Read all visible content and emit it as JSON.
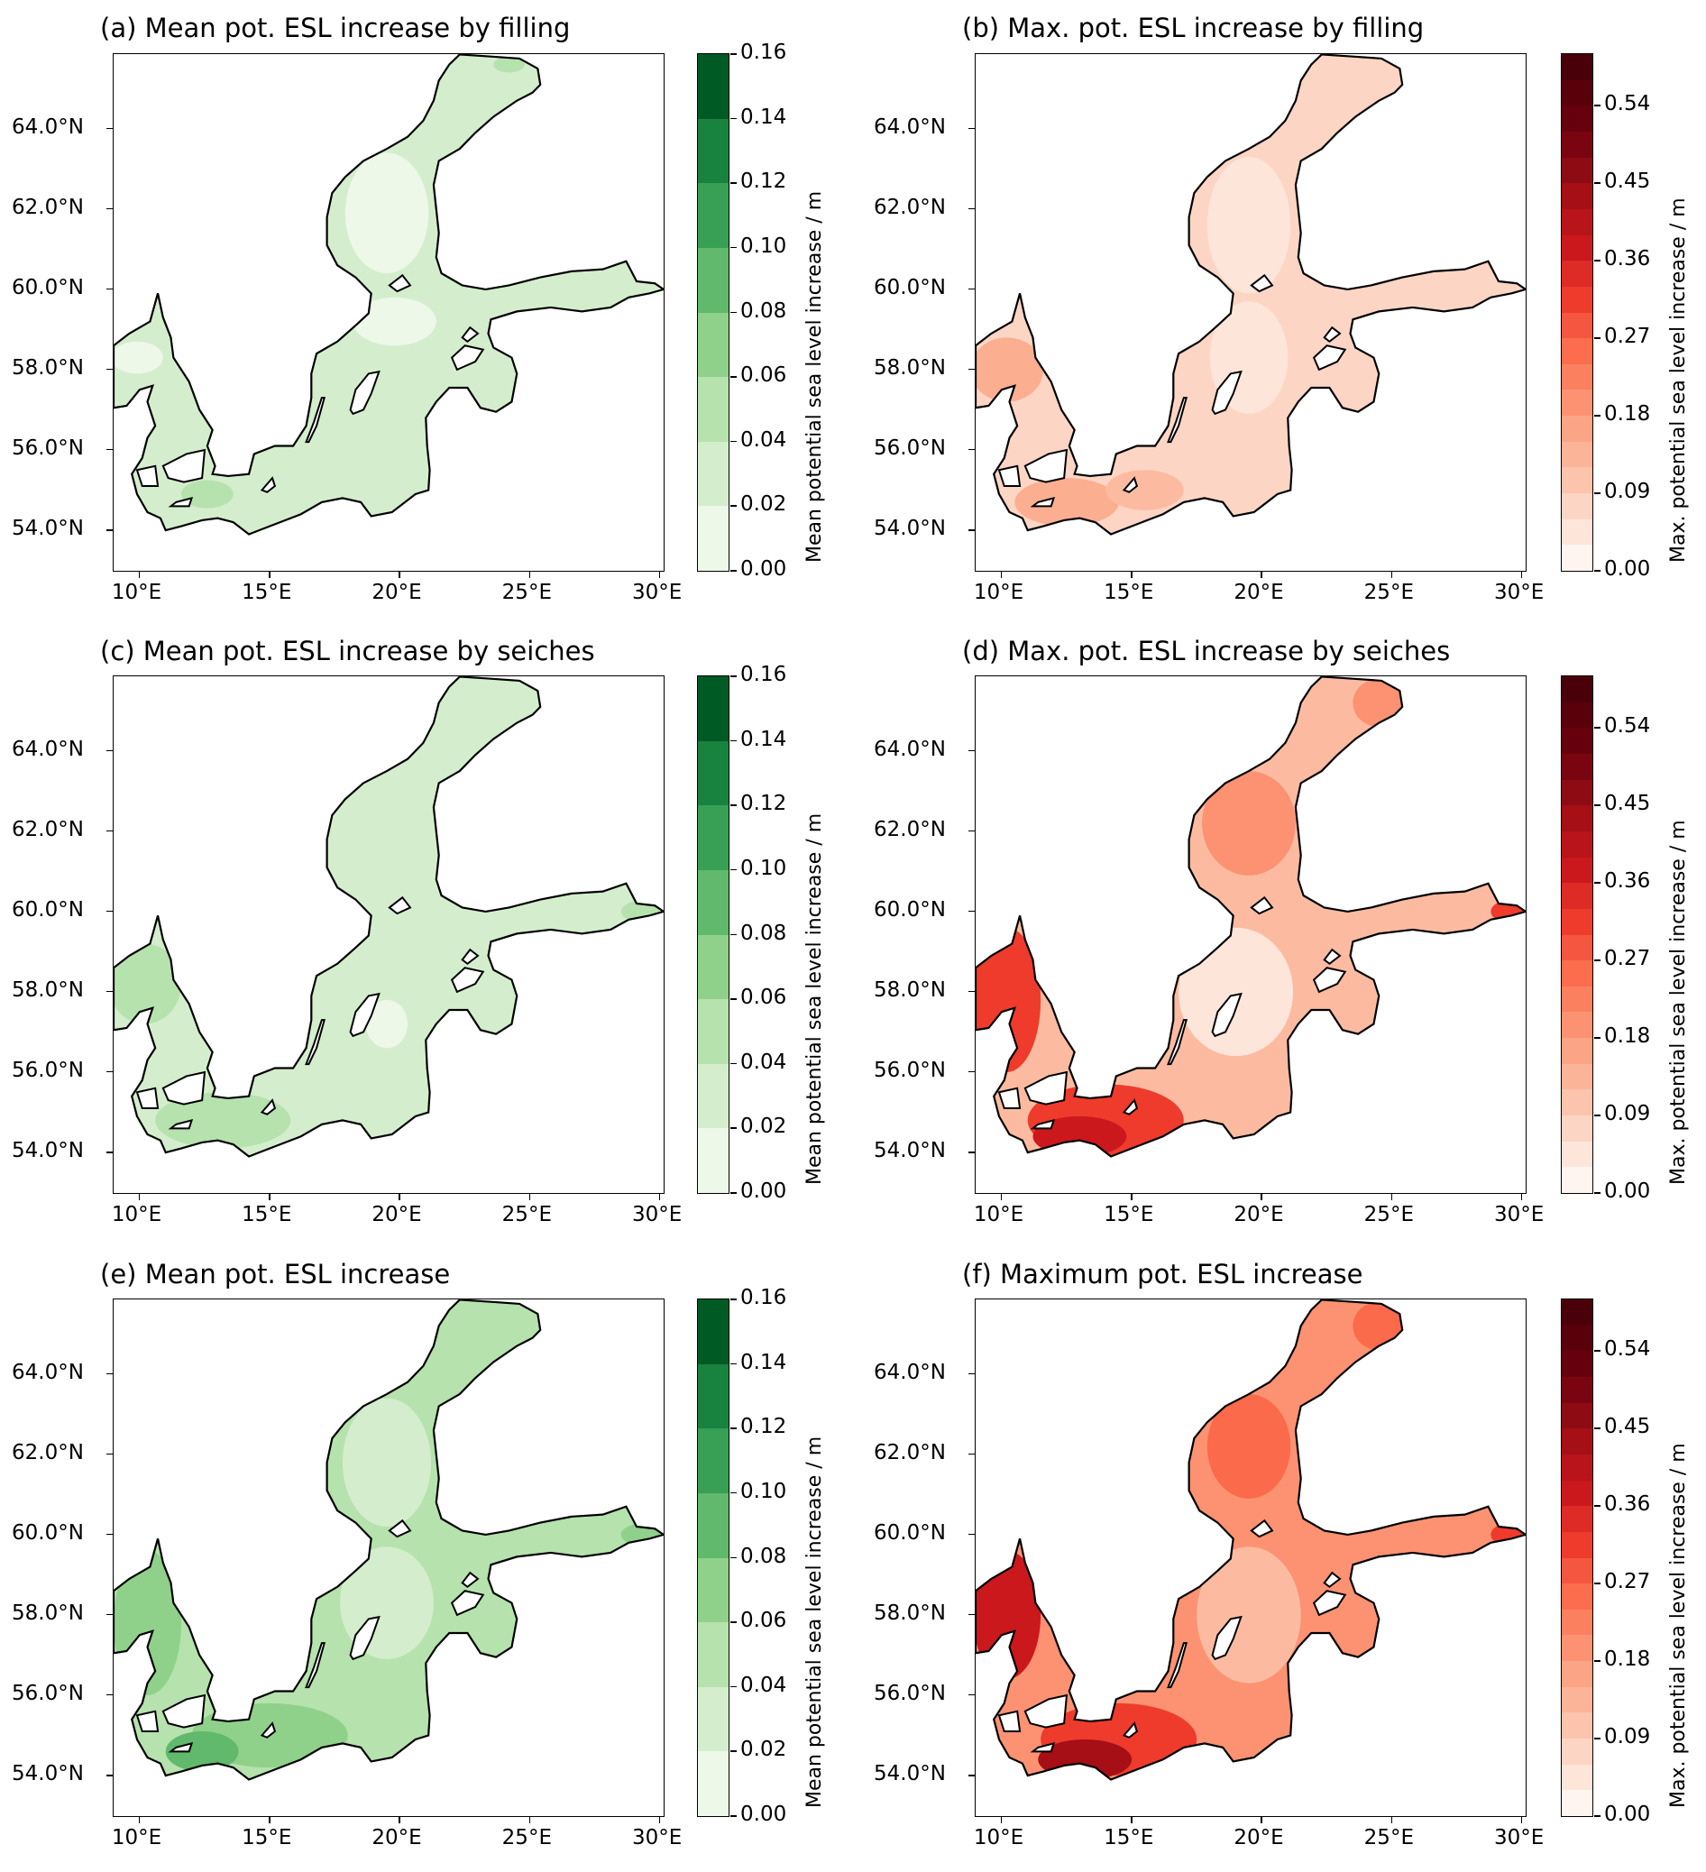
{
  "figure": {
    "panels": [
      {
        "id": "a",
        "title": "(a) Mean pot. ESL increase by filling",
        "cmap": "greens",
        "cbar_label": "Mean potential sea level increase / m",
        "fill": {
          "base": "#d4eecd",
          "blobs": [
            [
              "#edf8e9",
              19.5,
              61.9,
              1.6,
              1.5
            ],
            [
              "#edf8e9",
              19.8,
              59.2,
              1.6,
              0.6
            ],
            [
              "#edf8e9",
              9.9,
              58.3,
              1.0,
              0.4
            ],
            [
              "#b6e2ad",
              12.6,
              54.9,
              1.0,
              0.35
            ],
            [
              "#b6e2ad",
              24.2,
              65.6,
              0.6,
              0.2
            ]
          ]
        }
      },
      {
        "id": "b",
        "title": "(b) Max. pot. ESL increase by filling",
        "cmap": "reds",
        "cbar_label": "Max. potential sea level increase / m",
        "fill": {
          "base": "#fdd5c4",
          "blobs": [
            [
              "#fee5d9",
              19.5,
              61.6,
              1.6,
              1.7
            ],
            [
              "#fee5d9",
              19.5,
              58.3,
              1.5,
              1.4
            ],
            [
              "#fcae91",
              10.2,
              58.0,
              1.4,
              0.8
            ],
            [
              "#fcae91",
              12.5,
              54.7,
              2.0,
              0.6
            ],
            [
              "#fcbba1",
              15.5,
              55.0,
              1.5,
              0.5
            ]
          ]
        }
      },
      {
        "id": "c",
        "title": "(c) Mean pot. ESL increase by seiches",
        "cmap": "greens",
        "cbar_label": "Mean potential sea level increase / m",
        "fill": {
          "base": "#d4eecd",
          "blobs": [
            [
              "#b6e2ad",
              10.2,
              58.2,
              1.4,
              1.0
            ],
            [
              "#b6e2ad",
              13.2,
              54.8,
              2.6,
              0.7
            ],
            [
              "#b6e2ad",
              29.5,
              60.0,
              1.0,
              0.3
            ],
            [
              "#edf8e9",
              19.5,
              57.2,
              0.8,
              0.6
            ]
          ]
        }
      },
      {
        "id": "d",
        "title": "(d) Max. pot. ESL increase by seiches",
        "cmap": "reds",
        "cbar_label": "Max. potential sea level increase / m",
        "fill": {
          "base": "#fcbba1",
          "blobs": [
            [
              "#fee5d9",
              19.0,
              58.0,
              2.2,
              1.6
            ],
            [
              "#fc9272",
              19.5,
              62.2,
              1.8,
              1.3
            ],
            [
              "#fc9272",
              24.5,
              65.2,
              1.0,
              0.6
            ],
            [
              "#ef3b2c",
              10.2,
              57.8,
              1.3,
              1.8
            ],
            [
              "#ef3b2c",
              14.0,
              54.8,
              3.0,
              0.9
            ],
            [
              "#cb181d",
              13.0,
              54.4,
              1.8,
              0.5
            ],
            [
              "#ef3b2c",
              29.6,
              60.0,
              0.8,
              0.3
            ]
          ]
        }
      },
      {
        "id": "e",
        "title": "(e) Mean pot. ESL increase",
        "cmap": "greens",
        "cbar_label": "Mean potential sea level increase / m",
        "fill": {
          "base": "#b6e2ad",
          "blobs": [
            [
              "#d4eecd",
              19.5,
              61.8,
              1.7,
              1.6
            ],
            [
              "#d4eecd",
              19.5,
              58.3,
              1.8,
              1.4
            ],
            [
              "#8fd18a",
              10.3,
              57.8,
              1.3,
              1.8
            ],
            [
              "#8fd18a",
              15.0,
              55.0,
              3.0,
              0.8
            ],
            [
              "#60b96c",
              12.4,
              54.6,
              1.4,
              0.5
            ],
            [
              "#8fd18a",
              29.5,
              60.0,
              1.0,
              0.3
            ]
          ]
        }
      },
      {
        "id": "f",
        "title": "(f) Maximum pot. ESL increase",
        "cmap": "reds",
        "cbar_label": "Max. potential sea level increase / m",
        "fill": {
          "base": "#fc9272",
          "blobs": [
            [
              "#fcbba1",
              19.5,
              58.0,
              2.0,
              1.7
            ],
            [
              "#fb6a4a",
              19.5,
              62.2,
              1.6,
              1.3
            ],
            [
              "#fb6a4a",
              24.5,
              65.2,
              1.0,
              0.6
            ],
            [
              "#cb181d",
              10.2,
              58.0,
              1.3,
              1.6
            ],
            [
              "#ef3b2c",
              14.5,
              54.9,
              3.0,
              0.9
            ],
            [
              "#a50f15",
              13.2,
              54.4,
              1.8,
              0.5
            ],
            [
              "#ef3b2c",
              29.6,
              60.0,
              0.8,
              0.3
            ]
          ]
        }
      }
    ],
    "lon_ticks": [
      "10°E",
      "15°E",
      "20°E",
      "25°E",
      "30°E"
    ],
    "lat_ticks": [
      "54.0°N",
      "56.0°N",
      "58.0°N",
      "60.0°N",
      "62.0°N",
      "64.0°N"
    ],
    "lon_values": [
      10,
      15,
      20,
      25,
      30
    ],
    "lat_values": [
      54,
      56,
      58,
      60,
      62,
      64
    ],
    "lon_range": [
      9.0,
      30.14
    ],
    "lat_range": [
      52.99,
      65.86
    ],
    "colorbars": {
      "greens": {
        "range": [
          0,
          0.16
        ],
        "levels": 8,
        "ticks": [
          "0.00",
          "0.02",
          "0.04",
          "0.06",
          "0.08",
          "0.10",
          "0.12",
          "0.14",
          "0.16"
        ],
        "tick_values": [
          0,
          0.02,
          0.04,
          0.06,
          0.08,
          0.1,
          0.12,
          0.14,
          0.16
        ],
        "colors": [
          "#edf8e9",
          "#d4eecd",
          "#b6e2ad",
          "#8fd18a",
          "#60b96c",
          "#37a055",
          "#18823f",
          "#005a24"
        ]
      },
      "reds": {
        "range": [
          0,
          0.6
        ],
        "levels": 20,
        "ticks": [
          "0.00",
          "0.09",
          "0.18",
          "0.27",
          "0.36",
          "0.45",
          "0.54"
        ],
        "tick_values": [
          0,
          0.09,
          0.18,
          0.27,
          0.36,
          0.45,
          0.54
        ],
        "colors": [
          "#fff5f0",
          "#fee5d9",
          "#fdd5c4",
          "#fcc4ad",
          "#fcb499",
          "#fca486",
          "#fc9272",
          "#fb8060",
          "#fb6d4d",
          "#f5563f",
          "#ef3b2c",
          "#de2b25",
          "#cb181d",
          "#b81419",
          "#a50f15",
          "#8f0b13",
          "#7a0510",
          "#67000d",
          "#5a000b",
          "#4a0009"
        ]
      }
    }
  }
}
